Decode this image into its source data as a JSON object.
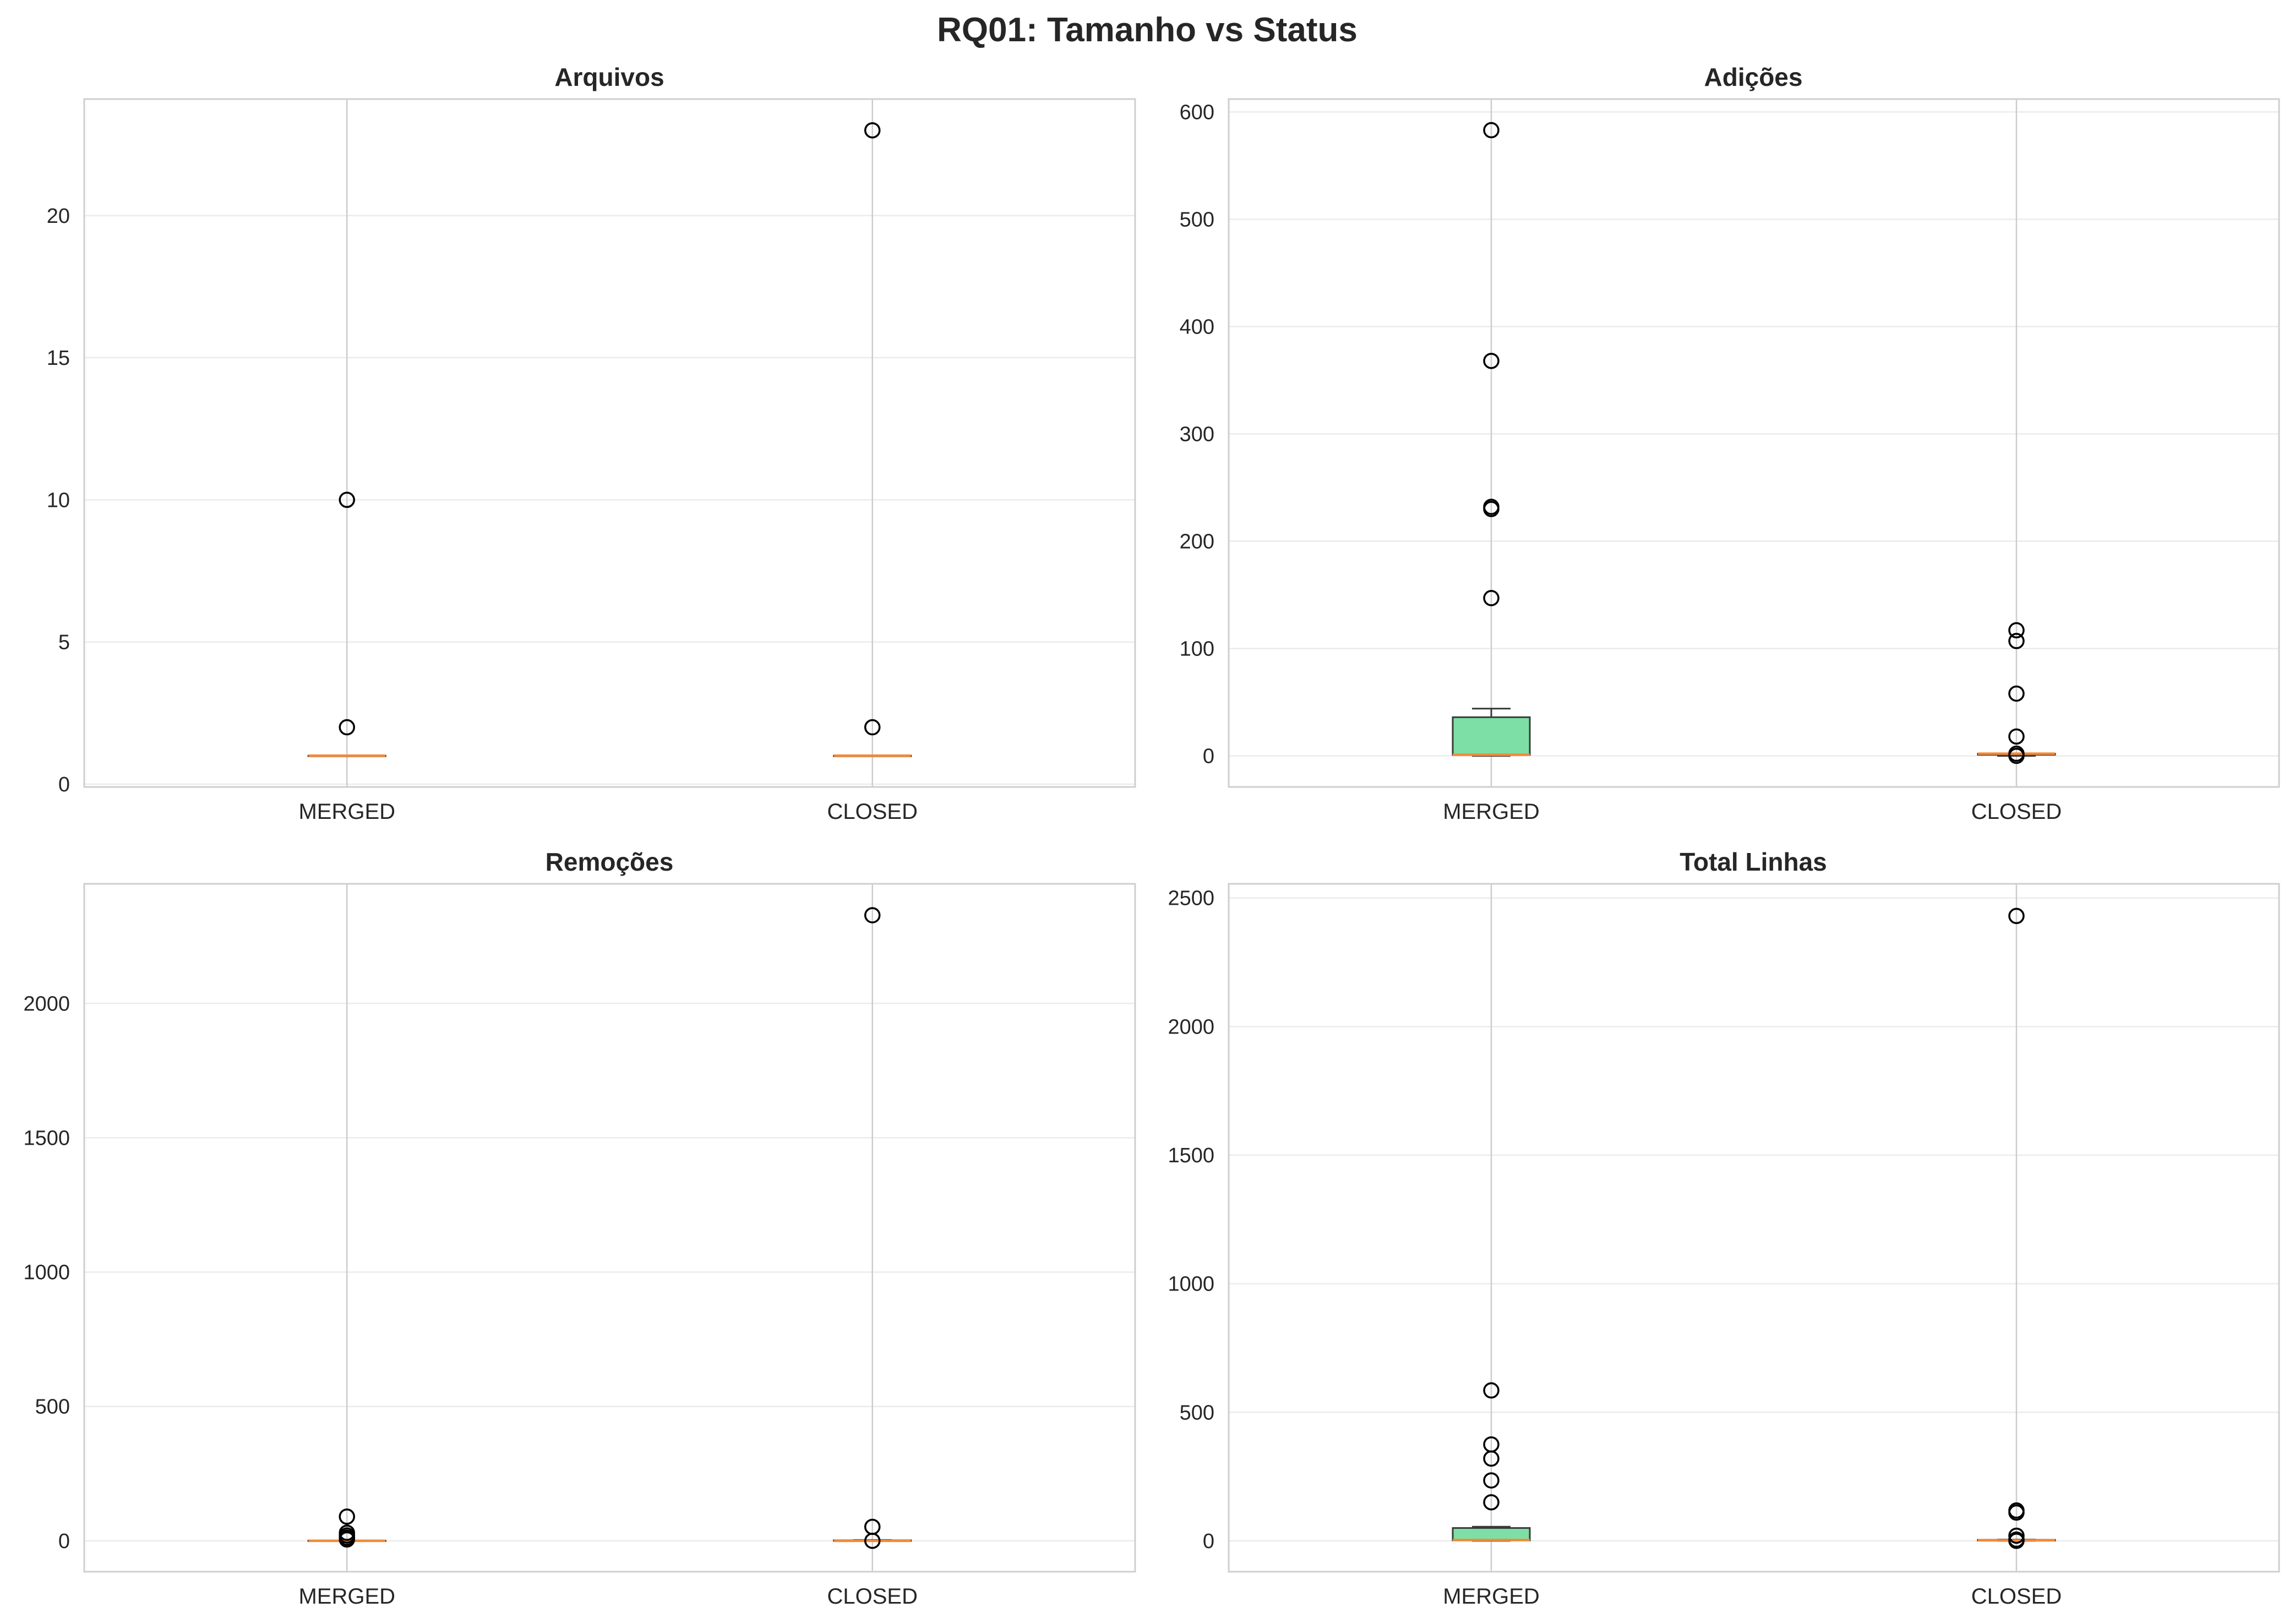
{
  "figure": {
    "title": "RQ01: Tamanho vs Status"
  },
  "colors": {
    "box_fill": "#7ddfa5",
    "box_edge": "#3a3a3a",
    "median": "#f28a38",
    "grid": "#ebebeb",
    "vertical_guide": "#cccccc",
    "frame": "#cfcfcf",
    "outlier": "#000000",
    "text": "#262626"
  },
  "chart_data": [
    {
      "type": "box",
      "title": "Arquivos",
      "xlabel": "",
      "ylabel": "",
      "categories": [
        "MERGED",
        "CLOSED"
      ],
      "ylim": [
        -0.1,
        24.1
      ],
      "yticks": [
        0,
        5,
        10,
        15,
        20
      ],
      "grid": true,
      "boxes": [
        {
          "name": "MERGED",
          "whisker_low": 1,
          "q1": 1,
          "median": 1,
          "q3": 1,
          "whisker_high": 1,
          "outliers": [
            2,
            10
          ]
        },
        {
          "name": "CLOSED",
          "whisker_low": 1,
          "q1": 1,
          "median": 1,
          "q3": 1,
          "whisker_high": 1,
          "outliers": [
            2,
            23
          ]
        }
      ]
    },
    {
      "type": "box",
      "title": "Adições",
      "xlabel": "",
      "ylabel": "",
      "categories": [
        "MERGED",
        "CLOSED"
      ],
      "ylim": [
        -29,
        612
      ],
      "yticks": [
        0,
        100,
        200,
        300,
        400,
        500,
        600
      ],
      "grid": true,
      "boxes": [
        {
          "name": "MERGED",
          "whisker_low": 0,
          "q1": 1,
          "median": 1,
          "q3": 36,
          "whisker_high": 44,
          "outliers": [
            147,
            230,
            232,
            368,
            583
          ]
        },
        {
          "name": "CLOSED",
          "whisker_low": 0,
          "q1": 1,
          "median": 2,
          "q3": 2,
          "whisker_high": 2,
          "outliers": [
            0,
            2,
            18,
            58,
            107,
            117
          ]
        }
      ]
    },
    {
      "type": "box",
      "title": "Remoções",
      "xlabel": "",
      "ylabel": "",
      "categories": [
        "MERGED",
        "CLOSED"
      ],
      "ylim": [
        -115,
        2445
      ],
      "yticks": [
        0,
        500,
        1000,
        1500,
        2000
      ],
      "grid": true,
      "boxes": [
        {
          "name": "MERGED",
          "whisker_low": 0,
          "q1": 0,
          "median": 0,
          "q3": 1,
          "whisker_high": 1,
          "outliers": [
            5,
            12,
            20,
            30,
            90
          ]
        },
        {
          "name": "CLOSED",
          "whisker_low": 0,
          "q1": 0,
          "median": 0,
          "q3": 2,
          "whisker_high": 3,
          "outliers": [
            0,
            52,
            2328
          ]
        }
      ]
    },
    {
      "type": "box",
      "title": "Total Linhas",
      "xlabel": "",
      "ylabel": "",
      "categories": [
        "MERGED",
        "CLOSED"
      ],
      "ylim": [
        -120,
        2555
      ],
      "yticks": [
        0,
        500,
        1000,
        1500,
        2000,
        2500
      ],
      "grid": true,
      "boxes": [
        {
          "name": "MERGED",
          "whisker_low": 0,
          "q1": 2,
          "median": 3,
          "q3": 50,
          "whisker_high": 55,
          "outliers": [
            150,
            235,
            320,
            375,
            585
          ]
        },
        {
          "name": "CLOSED",
          "whisker_low": 0,
          "q1": 1,
          "median": 2,
          "q3": 4,
          "whisker_high": 5,
          "outliers": [
            0,
            5,
            20,
            110,
            118,
            2430
          ]
        }
      ]
    }
  ]
}
